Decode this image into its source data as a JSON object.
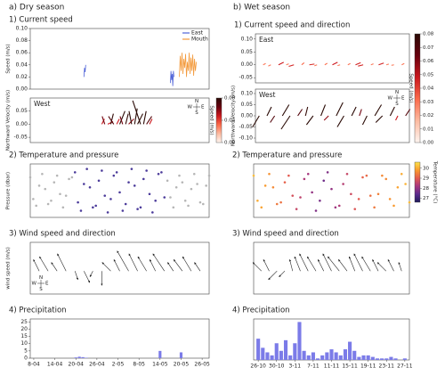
{
  "headers": [
    "a) Dry season",
    "b) Wet season"
  ],
  "chart_data": [
    {
      "type": "line",
      "section": "1) Current speed",
      "ylabel": "Speed (m/s)",
      "xlim": [
        0,
        60
      ],
      "ylim": [
        0,
        0.1
      ],
      "yticks": [
        {
          "value": 0,
          "label": "0.00"
        },
        {
          "value": 0.02,
          "label": "0.02"
        },
        {
          "value": 0.04,
          "label": "0.04"
        },
        {
          "value": 0.06,
          "label": "0.06"
        },
        {
          "value": 0.08,
          "label": "0.08"
        },
        {
          "value": 0.1,
          "label": "0.10"
        }
      ],
      "series": [
        {
          "name": "East",
          "color": "#4f63d8",
          "x": [
            18,
            18.2,
            18.4,
            18.6,
            30,
            47,
            47.2,
            47.4,
            47.6,
            47.8,
            48,
            48.2
          ],
          "values": [
            0.02,
            0.035,
            0.028,
            0.04,
            null,
            0.01,
            0.03,
            0.015,
            0.025,
            0.005,
            0.03,
            0.02
          ]
        },
        {
          "name": "Mouth",
          "color": "#f39a3c",
          "x": [
            50,
            50.3,
            50.6,
            50.9,
            51.2,
            51.5,
            51.8,
            52.1,
            52.4,
            52.7,
            53,
            53.3,
            53.6,
            53.9,
            54.2,
            54.5,
            54.8,
            55.1,
            55.4,
            55.7
          ],
          "values": [
            0.02,
            0.055,
            0.03,
            0.06,
            0.025,
            0.05,
            0.035,
            0.058,
            0.02,
            0.045,
            0.03,
            0.06,
            0.025,
            0.052,
            0.03,
            0.057,
            0.022,
            0.05,
            0.03,
            0.045
          ]
        }
      ]
    },
    {
      "type": "quiver",
      "label": "West",
      "ylabel": "Northward Velocity (m/s)",
      "xlim": [
        0,
        60
      ],
      "ylim": [
        -0.07,
        0.1
      ],
      "yticks": [
        {
          "value": -0.05,
          "label": "-0.05"
        },
        {
          "value": 0,
          "label": "0.00"
        },
        {
          "value": 0.05,
          "label": "0.05"
        }
      ],
      "compass": [
        "N",
        "S",
        "W",
        "E"
      ],
      "x": [
        24,
        25,
        26,
        27,
        28,
        29,
        30,
        31,
        32,
        33,
        34,
        35,
        36,
        37,
        38,
        39,
        40
      ],
      "u": [
        0.01,
        -0.01,
        0.02,
        0.01,
        -0.02,
        0.01,
        0.02,
        -0.01,
        0.01,
        0.02,
        -0.01,
        0.01,
        0.02,
        -0.03,
        0.01,
        0.02,
        0.01
      ],
      "v": [
        0.02,
        0.03,
        0.01,
        0.04,
        0.03,
        0.02,
        0.05,
        0.03,
        0.04,
        0.02,
        0.05,
        0.06,
        0.04,
        0.09,
        0.05,
        0.03,
        0.02
      ],
      "colorbar": {
        "label": "Speed (m/s)",
        "cmap": "reds",
        "lim": [
          0,
          0.08
        ],
        "ticks": [
          {
            "value": 0,
            "label": "0.00"
          },
          {
            "value": 0.04,
            "label": "0.04"
          },
          {
            "value": 0.08,
            "label": "0.08"
          }
        ]
      }
    },
    {
      "type": "scatter",
      "section": "2) Temperature and pressure",
      "ylabel": "Pressure (dbar)",
      "xlim": [
        0,
        60
      ],
      "ylim": [
        -1.6,
        1.6
      ],
      "series": [
        {
          "color": "#b5b5b5",
          "x": [
            0,
            1,
            2,
            3,
            4,
            5,
            6,
            7,
            8,
            9,
            10,
            11,
            12,
            13,
            14,
            46,
            47,
            48,
            49,
            50,
            51,
            52,
            53,
            54,
            55,
            56,
            57,
            58,
            59,
            60
          ],
          "values": [
            0.8,
            -0.5,
            -0.9,
            0.3,
            1.0,
            0.1,
            -0.8,
            -0.6,
            0.5,
            0.9,
            -0.2,
            -1.0,
            -0.3,
            0.7,
            0.8,
            0.6,
            -0.4,
            -1.0,
            0.2,
            0.9,
            0.5,
            -0.6,
            -0.9,
            0.1,
            1.0,
            0.4,
            -0.7,
            -0.8,
            0.3,
            0.9
          ]
        },
        {
          "color": "#4b3b9a",
          "x": [
            15,
            16,
            17,
            18,
            19,
            20,
            21,
            22,
            23,
            24,
            25,
            26,
            27,
            28,
            29,
            30,
            31,
            32,
            33,
            34,
            35,
            36,
            37,
            38,
            39,
            40,
            41,
            42,
            43,
            44,
            45
          ],
          "values": [
            1.1,
            -0.7,
            -1.2,
            0.4,
            1.3,
            0.2,
            -1.0,
            -0.9,
            0.6,
            1.2,
            -0.3,
            -1.3,
            -0.5,
            0.9,
            1.1,
            -0.1,
            -1.2,
            -0.8,
            0.5,
            1.3,
            0.3,
            -1.1,
            -1.0,
            0.7,
            1.2,
            -0.2,
            -1.3,
            -0.6,
            1.0,
            1.1,
            -0.4
          ]
        }
      ]
    },
    {
      "type": "quiver",
      "section": "3) Wind speed and direction",
      "ylabel": "wind speed (m/s)",
      "xlim": [
        0,
        60
      ],
      "ylim": [
        -8,
        10
      ],
      "color": "#222222",
      "compass": [
        "N",
        "S",
        "W",
        "E"
      ],
      "x": [
        3,
        6,
        9,
        12,
        15,
        18,
        21,
        24,
        27,
        30,
        33,
        36,
        39,
        42,
        45,
        48,
        51,
        54,
        57
      ],
      "u": [
        -2,
        -3,
        -2,
        -3,
        1,
        2,
        -1,
        0,
        -3,
        -2,
        -4,
        -3,
        -3,
        -2,
        -4,
        -2,
        -3,
        -3,
        -2
      ],
      "v": [
        4,
        5,
        3,
        6,
        -3,
        -4,
        -2,
        -5,
        3,
        4,
        7,
        6,
        5,
        4,
        6,
        3,
        4,
        5,
        3
      ]
    },
    {
      "type": "bar",
      "section": "4) Precipitation",
      "xlim": [
        -1,
        50
      ],
      "ylim": [
        0,
        27
      ],
      "color": "#7b7be8",
      "yticks": [
        0,
        5,
        10,
        15,
        20,
        25
      ],
      "xticks": [
        {
          "value": 0,
          "label": "8-04"
        },
        {
          "value": 6,
          "label": "14-04"
        },
        {
          "value": 12,
          "label": "20-04"
        },
        {
          "value": 18,
          "label": "26-04"
        },
        {
          "value": 24,
          "label": "2-05"
        },
        {
          "value": 30,
          "label": "8-05"
        },
        {
          "value": 36,
          "label": "14-05"
        },
        {
          "value": 42,
          "label": "20-05"
        },
        {
          "value": 48,
          "label": "26-05"
        }
      ],
      "x": [
        12,
        13,
        14,
        15,
        36,
        42
      ],
      "values": [
        0.5,
        1,
        0.7,
        0.3,
        5,
        4
      ]
    },
    {
      "type": "quiver",
      "section": "1) Current speed and direction",
      "label": "East",
      "xlim": [
        0,
        40
      ],
      "ylim": [
        -0.07,
        0.12
      ],
      "yticks": [
        {
          "value": -0.05,
          "label": "-0.05"
        },
        {
          "value": 0,
          "label": "0.00"
        },
        {
          "value": 0.05,
          "label": "0.05"
        },
        {
          "value": 0.1,
          "label": "0.10"
        }
      ],
      "x": [
        2,
        4,
        6,
        8,
        10,
        12,
        14,
        16,
        18,
        20,
        22,
        24,
        26,
        28,
        30,
        32,
        34,
        36,
        38
      ],
      "u": [
        0.01,
        -0.01,
        0.02,
        0.01,
        -0.02,
        0.01,
        0.02,
        -0.01,
        0.01,
        0.02,
        -0.01,
        0.01,
        0.02,
        -0.02,
        0.01,
        0.02,
        0.01,
        -0.01,
        0.01
      ],
      "v": [
        0.005,
        -0.005,
        0.01,
        0.004,
        -0.006,
        0.008,
        0.003,
        -0.004,
        0.006,
        0.01,
        -0.003,
        0.005,
        0.008,
        -0.005,
        0.004,
        0.007,
        0.003,
        -0.002,
        0.005
      ]
    },
    {
      "type": "quiver",
      "label": "West",
      "ylabel": "Northward Velocity (m/s)",
      "xlim": [
        0,
        40
      ],
      "ylim": [
        -0.12,
        0.12
      ],
      "yticks": [
        {
          "value": -0.1,
          "label": "-0.10"
        },
        {
          "value": -0.05,
          "label": "-0.05"
        },
        {
          "value": 0,
          "label": "0.00"
        },
        {
          "value": 0.05,
          "label": "0.05"
        },
        {
          "value": 0.1,
          "label": "0.10"
        }
      ],
      "compass": [
        "N",
        "S",
        "W",
        "E"
      ],
      "x": [
        1,
        3,
        5,
        7,
        9,
        11,
        13,
        15,
        17,
        19,
        21,
        23,
        25,
        27,
        29,
        31,
        33,
        35,
        37,
        39
      ],
      "u": [
        -0.03,
        0.02,
        -0.02,
        0.03,
        -0.04,
        0.02,
        0.01,
        -0.03,
        0.02,
        -0.02,
        0.03,
        -0.03,
        0.02,
        0.01,
        -0.02,
        0.03,
        -0.03,
        0.02,
        -0.01,
        0.02
      ],
      "v": [
        -0.05,
        0.04,
        -0.03,
        0.05,
        -0.06,
        0.03,
        0.04,
        -0.04,
        0.05,
        -0.02,
        0.06,
        -0.05,
        0.04,
        0.03,
        -0.04,
        0.05,
        -0.03,
        0.04,
        -0.02,
        0.03
      ],
      "colorbar": {
        "label": "Speed (m/s)",
        "cmap": "reds",
        "lim": [
          0,
          0.08
        ],
        "ticks": [
          {
            "value": 0,
            "label": "0.00"
          },
          {
            "value": 0.01,
            "label": "0.01"
          },
          {
            "value": 0.02,
            "label": "0.02"
          },
          {
            "value": 0.03,
            "label": "0.03"
          },
          {
            "value": 0.04,
            "label": "0.04"
          },
          {
            "value": 0.05,
            "label": "0.05"
          },
          {
            "value": 0.06,
            "label": "0.06"
          },
          {
            "value": 0.07,
            "label": "0.07"
          },
          {
            "value": 0.08,
            "label": "0.08"
          }
        ]
      }
    },
    {
      "type": "scatter",
      "section": "2) Temperature and pressure",
      "xlim": [
        0,
        40
      ],
      "ylim": [
        -1.6,
        1.6
      ],
      "x": [
        0,
        1,
        2,
        3,
        4,
        5,
        6,
        7,
        8,
        9,
        10,
        11,
        12,
        13,
        14,
        15,
        16,
        17,
        18,
        19,
        20,
        21,
        22,
        23,
        24,
        25,
        26,
        27,
        28,
        29,
        30,
        31,
        32,
        33,
        34,
        35,
        36,
        37,
        38,
        39,
        40
      ],
      "values": [
        0.9,
        -0.6,
        -1.0,
        0.3,
        1.0,
        0.2,
        -0.8,
        -0.7,
        0.5,
        0.9,
        -0.3,
        -1.1,
        -0.4,
        0.7,
        1.0,
        -0.1,
        -1.2,
        -0.6,
        0.6,
        1.1,
        0.1,
        -1.0,
        -0.9,
        0.4,
        1.0,
        -0.2,
        -1.1,
        -0.5,
        0.8,
        0.9,
        -0.3,
        -1.0,
        -0.2,
        0.9,
        0.7,
        -0.5,
        -0.9,
        0.2,
        1.0,
        0.4,
        -0.7
      ],
      "temperature": [
        30.2,
        30.0,
        29.9,
        29.8,
        29.7,
        29.6,
        29.4,
        29.3,
        29.1,
        29.0,
        28.8,
        28.6,
        28.5,
        28.3,
        28.2,
        28.0,
        27.8,
        27.7,
        27.6,
        27.8,
        28.0,
        28.1,
        28.3,
        28.4,
        28.6,
        28.7,
        28.9,
        29.0,
        29.1,
        29.2,
        29.3,
        29.4,
        29.5,
        29.6,
        29.6,
        29.7,
        29.8,
        29.9,
        30.0,
        30.1,
        30.2
      ],
      "colorbar": {
        "label": "Temperature (°C)",
        "cmap": "plasma",
        "lim": [
          26.6,
          30.6
        ],
        "ticks": [
          27,
          28,
          29,
          30
        ]
      }
    },
    {
      "type": "quiver",
      "section": "3) Wind speed and direction",
      "xlim": [
        0,
        40
      ],
      "ylim": [
        -8,
        10
      ],
      "color": "#222222",
      "x": [
        2,
        4,
        6,
        8,
        10,
        12,
        14,
        16,
        18,
        20,
        22,
        24,
        26,
        28,
        30,
        32,
        34,
        36,
        38
      ],
      "u": [
        -3,
        -2,
        -3,
        -2,
        -1,
        -2,
        -3,
        -3,
        -2,
        -3,
        -4,
        -3,
        -2,
        -3,
        -3,
        -2,
        -3,
        -2,
        -1
      ],
      "v": [
        3,
        4,
        -3,
        -2,
        4,
        5,
        6,
        5,
        4,
        6,
        5,
        4,
        5,
        6,
        5,
        4,
        3,
        4,
        3
      ]
    },
    {
      "type": "bar",
      "section": "4) Precipitation",
      "xlim": [
        -1,
        33
      ],
      "ylim": [
        0,
        27
      ],
      "color": "#7b7be8",
      "xticks": [
        {
          "value": 0,
          "label": "26-10"
        },
        {
          "value": 4,
          "label": "30-10"
        },
        {
          "value": 8,
          "label": "3-11"
        },
        {
          "value": 12,
          "label": "7-11"
        },
        {
          "value": 16,
          "label": "11-11"
        },
        {
          "value": 20,
          "label": "15-11"
        },
        {
          "value": 24,
          "label": "19-11"
        },
        {
          "value": 28,
          "label": "23-11"
        },
        {
          "value": 32,
          "label": "27-11"
        }
      ],
      "x": [
        0,
        1,
        2,
        3,
        4,
        5,
        6,
        7,
        8,
        9,
        10,
        11,
        12,
        13,
        14,
        15,
        16,
        17,
        18,
        19,
        20,
        21,
        22,
        23,
        24,
        25,
        26,
        27,
        28,
        29,
        30,
        31,
        32
      ],
      "values": [
        14,
        8,
        5,
        3,
        11,
        6,
        13,
        3,
        11,
        25,
        6,
        3,
        5,
        1,
        3,
        5,
        7,
        5,
        3,
        7,
        12,
        6,
        2,
        3,
        3,
        2,
        1,
        1,
        1,
        2,
        1,
        0,
        1
      ]
    }
  ]
}
